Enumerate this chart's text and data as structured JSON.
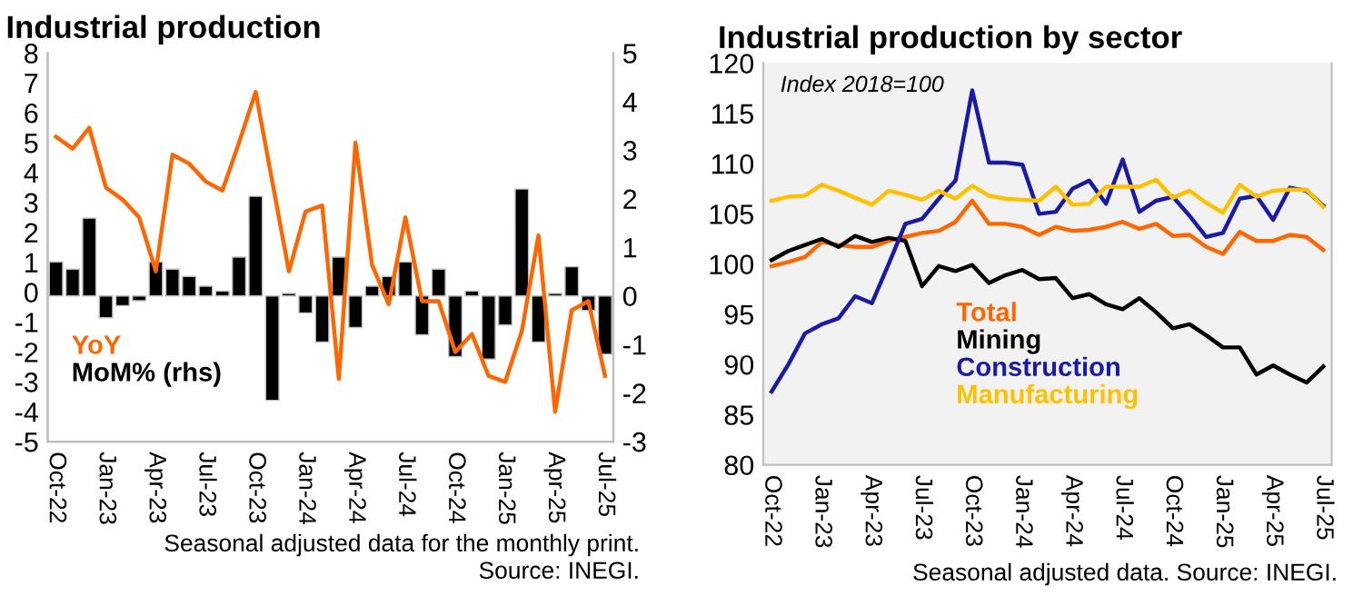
{
  "chart_data": [
    {
      "type": "line",
      "title": "Industrial production",
      "categories": [
        "Oct-22",
        null,
        null,
        "Jan-23",
        null,
        null,
        "Apr-23",
        null,
        null,
        "Jul-23",
        null,
        null,
        "Oct-23",
        null,
        null,
        "Jan-24",
        null,
        null,
        "Apr-24",
        null,
        null,
        "Jul-24",
        null,
        null,
        "Oct-24",
        null,
        null,
        "Jan-25",
        null,
        null,
        "Apr-25",
        null,
        null,
        "Jul-25"
      ],
      "series": [
        {
          "name": "MoM% (rhs)",
          "type": "bar",
          "axis": "y2",
          "color": "#000000",
          "values": [
            0.7,
            0.55,
            1.6,
            -0.45,
            -0.2,
            -0.1,
            0.7,
            0.55,
            0.4,
            0.2,
            0.1,
            0.8,
            2.05,
            -2.15,
            0.05,
            -0.35,
            -0.95,
            0.8,
            -0.65,
            0.2,
            0.4,
            0.7,
            -0.8,
            0.55,
            -1.25,
            0.1,
            -1.3,
            -0.6,
            2.2,
            -0.95,
            0.05,
            0.6,
            -0.3,
            -1.2
          ]
        },
        {
          "name": "YoY",
          "type": "line",
          "color": "#ff6600",
          "values": [
            5.2,
            4.8,
            5.5,
            3.5,
            3.1,
            2.5,
            0.7,
            4.6,
            4.3,
            3.7,
            3.4,
            5.0,
            6.7,
            3.7,
            0.7,
            2.7,
            2.9,
            -2.9,
            5.0,
            0.9,
            -0.4,
            2.5,
            -0.3,
            -0.3,
            -2.0,
            -1.4,
            -2.8,
            -3.0,
            -1.3,
            1.9,
            -4.0,
            -0.6,
            -0.3,
            -2.8
          ]
        }
      ],
      "ylim": [
        -5,
        8
      ],
      "yticks": [
        -5,
        -4,
        -3,
        -2,
        -1,
        0,
        1,
        2,
        3,
        4,
        5,
        6,
        7,
        8
      ],
      "y2lim": [
        -3,
        5
      ],
      "y2ticks": [
        -3,
        -2,
        -1,
        0,
        1,
        2,
        3,
        4,
        5
      ],
      "legend": "bottom left",
      "grid": false,
      "marker": "none",
      "line_style": "solid",
      "annotations": [
        "Seasonal adjusted data for the monthly print.",
        "Source: INEGI."
      ]
    },
    {
      "type": "line",
      "title": "Industrial production by sector",
      "categories": [
        "Oct-22",
        null,
        null,
        "Jan-23",
        null,
        null,
        "Apr-23",
        null,
        null,
        "Jul-23",
        null,
        null,
        "Oct-23",
        null,
        null,
        "Jan-24",
        null,
        null,
        "Apr-24",
        null,
        null,
        "Jul-24",
        null,
        null,
        "Oct-24",
        null,
        null,
        "Jan-25",
        null,
        null,
        "Apr-25",
        null,
        null,
        "Jul-25"
      ],
      "series": [
        {
          "name": "Total",
          "color": "#ff6600",
          "values": [
            99.8,
            100.2,
            100.7,
            102.2,
            101.9,
            101.7,
            101.7,
            102.3,
            102.7,
            103.1,
            103.3,
            104.2,
            106.3,
            104.0,
            104.0,
            103.7,
            102.9,
            103.7,
            103.3,
            103.4,
            103.7,
            104.2,
            103.5,
            104.0,
            102.8,
            102.9,
            101.7,
            101.0,
            103.2,
            102.3,
            102.3,
            102.9,
            102.7,
            101.4
          ]
        },
        {
          "name": "Mining",
          "color": "#000000",
          "values": [
            100.4,
            101.3,
            101.9,
            102.5,
            101.7,
            102.8,
            102.2,
            102.6,
            102.3,
            97.8,
            99.8,
            99.3,
            99.9,
            98.1,
            98.9,
            99.4,
            98.5,
            98.6,
            96.6,
            97.0,
            96.0,
            95.5,
            96.6,
            95.2,
            93.6,
            94.0,
            92.9,
            91.7,
            91.7,
            89.0,
            89.9,
            89.0,
            88.2,
            89.8
          ]
        },
        {
          "name": "Construction",
          "color": "#1a1aa6",
          "values": [
            87.3,
            90.0,
            93.1,
            94.0,
            94.6,
            96.8,
            96.1,
            100.0,
            104.0,
            104.5,
            106.5,
            108.3,
            117.3,
            110.1,
            110.1,
            109.9,
            105.0,
            105.2,
            107.5,
            108.3,
            106.0,
            110.4,
            105.2,
            106.3,
            106.7,
            104.8,
            102.7,
            103.1,
            106.5,
            106.8,
            104.4,
            107.6,
            107.3,
            105.8
          ]
        },
        {
          "name": "Manufacturing",
          "color": "#ffc000",
          "values": [
            106.3,
            106.7,
            106.8,
            107.9,
            107.3,
            106.6,
            105.9,
            107.3,
            106.9,
            106.4,
            107.3,
            106.5,
            107.8,
            106.8,
            106.5,
            106.4,
            106.3,
            107.7,
            105.9,
            106.0,
            107.7,
            107.7,
            107.7,
            108.4,
            106.6,
            107.3,
            106.1,
            105.1,
            107.9,
            106.7,
            107.3,
            107.4,
            107.4,
            105.7
          ]
        }
      ],
      "ylim": [
        80,
        120
      ],
      "yticks": [
        80,
        85,
        90,
        95,
        100,
        105,
        110,
        115,
        120
      ],
      "legend": "bottom",
      "grid": false,
      "marker": "none",
      "line_style": "solid",
      "annotations": [
        "Index 2018=100",
        "Seasonal adjusted data. Source: INEGI."
      ]
    }
  ]
}
